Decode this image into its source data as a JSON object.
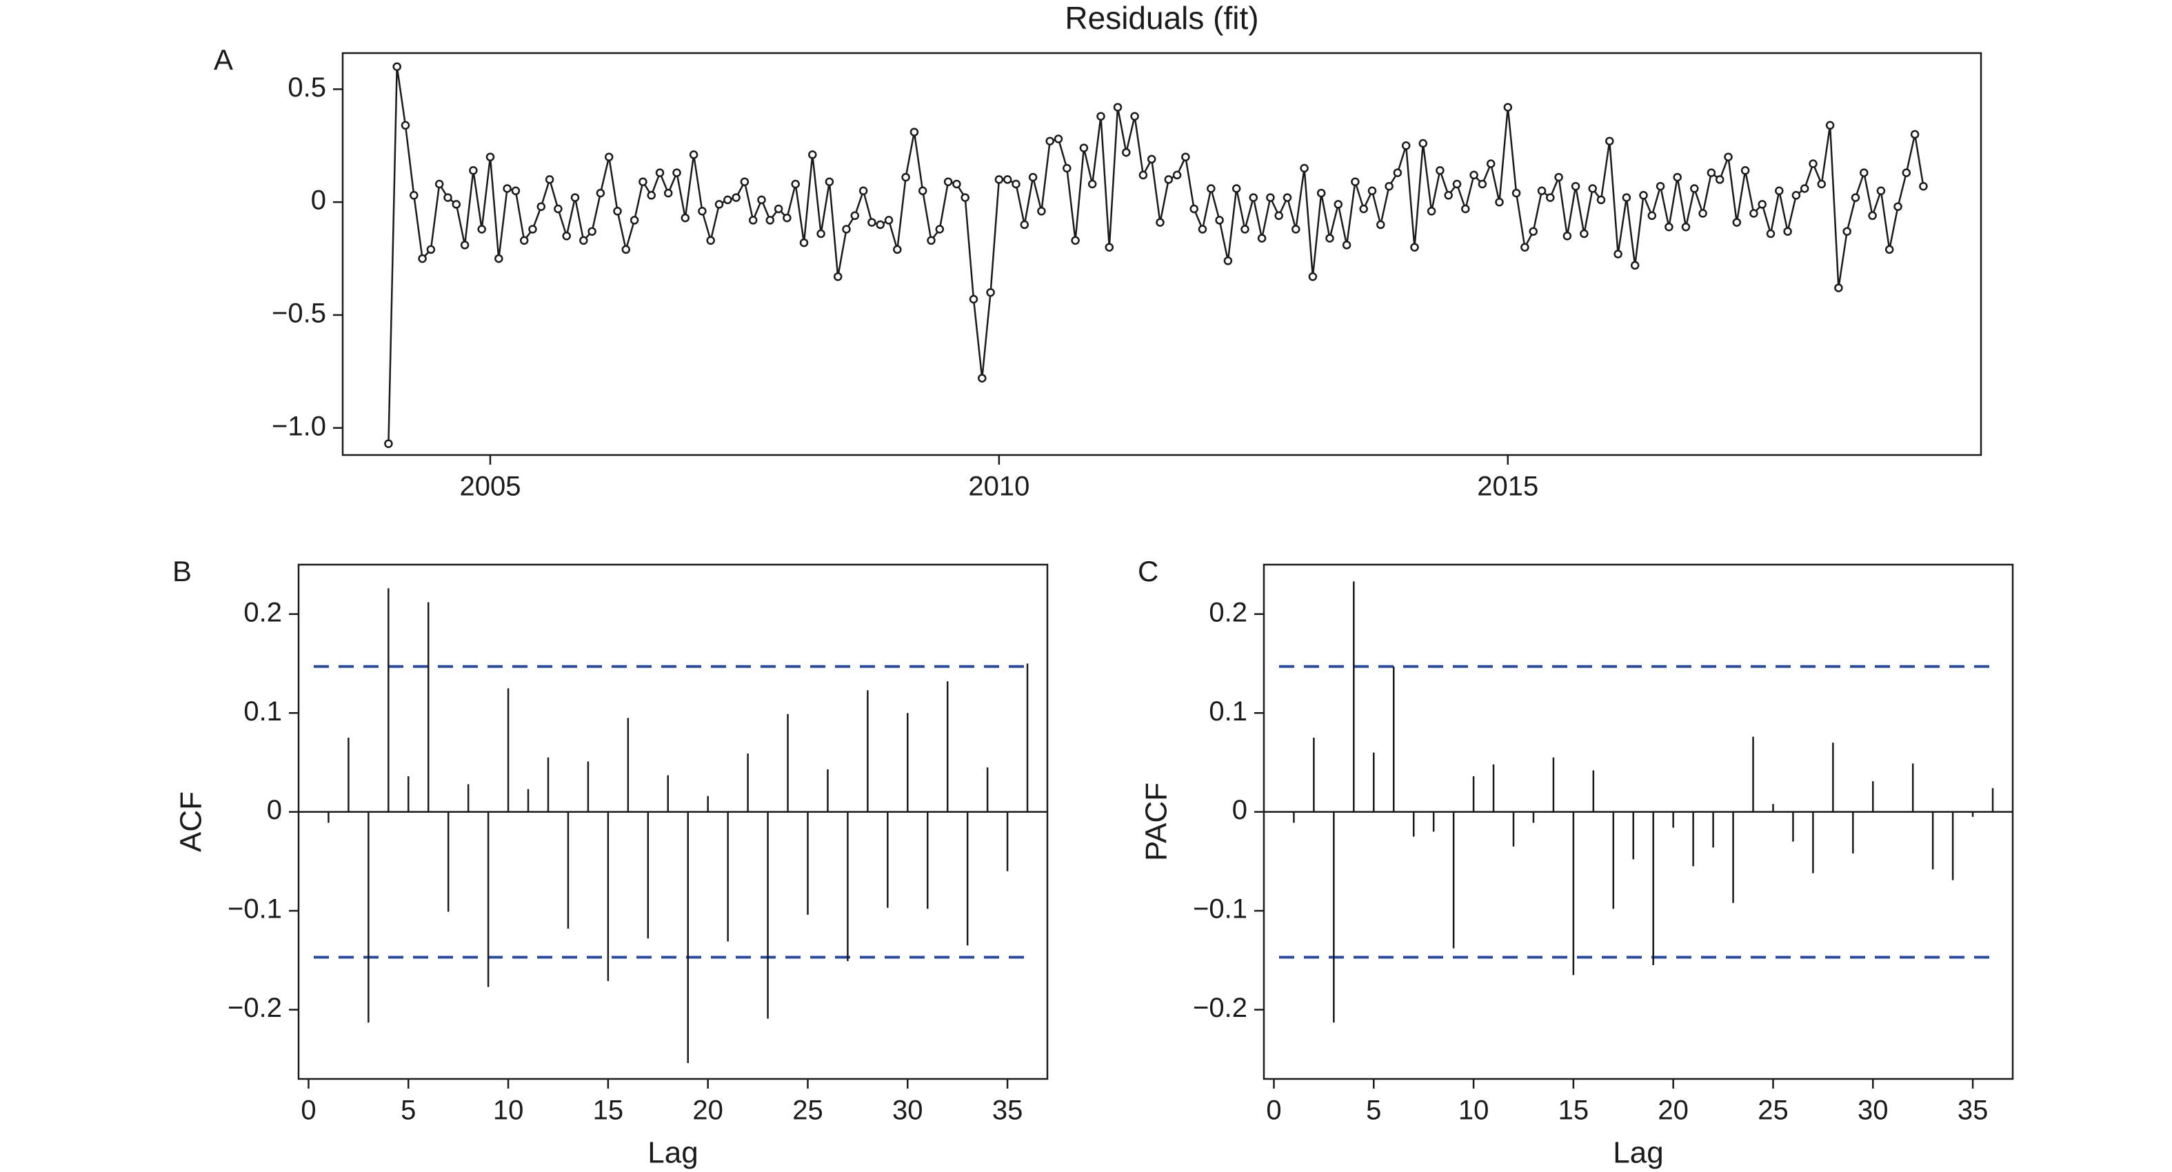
{
  "colors": {
    "line": "#1a1a1a",
    "conf": "#2b4a9b",
    "background": "#ffffff"
  },
  "chart_data": [
    {
      "panel": "A",
      "type": "line",
      "title": "Residuals (fit)",
      "xlabel": "",
      "ylabel": "",
      "xlim": [
        2003.55,
        2019.65
      ],
      "ylim": [
        -1.12,
        0.66
      ],
      "xticks": [
        2005,
        2010,
        2015
      ],
      "yticks": [
        0.5,
        0,
        -0.5,
        -1.0
      ],
      "ytick_labels": [
        "0.5",
        "0",
        "−0.5",
        "−1.0"
      ],
      "x_start": 2004.0,
      "x_step": 0.0833333,
      "values": [
        -1.07,
        0.6,
        0.34,
        0.03,
        -0.25,
        -0.21,
        0.08,
        0.02,
        -0.01,
        -0.19,
        0.14,
        -0.12,
        0.2,
        -0.25,
        0.06,
        0.05,
        -0.17,
        -0.12,
        -0.02,
        0.1,
        -0.03,
        -0.15,
        0.02,
        -0.17,
        -0.13,
        0.04,
        0.2,
        -0.04,
        -0.21,
        -0.08,
        0.09,
        0.03,
        0.13,
        0.04,
        0.13,
        -0.07,
        0.21,
        -0.04,
        -0.17,
        -0.01,
        0.01,
        0.02,
        0.09,
        -0.08,
        0.01,
        -0.08,
        -0.03,
        -0.07,
        0.08,
        -0.18,
        0.21,
        -0.14,
        0.09,
        -0.33,
        -0.12,
        -0.06,
        0.05,
        -0.09,
        -0.1,
        -0.08,
        -0.21,
        0.11,
        0.31,
        0.05,
        -0.17,
        -0.12,
        0.09,
        0.08,
        0.02,
        -0.43,
        -0.78,
        -0.4,
        0.1,
        0.1,
        0.08,
        -0.1,
        0.11,
        -0.04,
        0.27,
        0.28,
        0.15,
        -0.17,
        0.24,
        0.08,
        0.38,
        -0.2,
        0.42,
        0.22,
        0.38,
        0.12,
        0.19,
        -0.09,
        0.1,
        0.12,
        0.2,
        -0.03,
        -0.12,
        0.06,
        -0.08,
        -0.26,
        0.06,
        -0.12,
        0.02,
        -0.16,
        0.02,
        -0.06,
        0.02,
        -0.12,
        0.15,
        -0.33,
        0.04,
        -0.16,
        -0.01,
        -0.19,
        0.09,
        -0.03,
        0.05,
        -0.1,
        0.07,
        0.13,
        0.25,
        -0.2,
        0.26,
        -0.04,
        0.14,
        0.03,
        0.08,
        -0.03,
        0.12,
        0.08,
        0.17,
        0.0,
        0.42,
        0.04,
        -0.2,
        -0.13,
        0.05,
        0.02,
        0.11,
        -0.15,
        0.07,
        -0.14,
        0.06,
        0.01,
        0.27,
        -0.23,
        0.02,
        -0.28,
        0.03,
        -0.06,
        0.07,
        -0.11,
        0.11,
        -0.11,
        0.06,
        -0.05,
        0.13,
        0.1,
        0.2,
        -0.09,
        0.14,
        -0.05,
        -0.01,
        -0.14,
        0.05,
        -0.13,
        0.03,
        0.06,
        0.17,
        0.08,
        0.34,
        -0.38,
        -0.13,
        0.02,
        0.13,
        -0.06,
        0.05,
        -0.21,
        -0.02,
        0.13,
        0.3,
        0.07
      ]
    },
    {
      "panel": "B",
      "type": "bar",
      "title": "",
      "xlabel": "Lag",
      "ylabel": "ACF",
      "xlim": [
        -0.5,
        37
      ],
      "ylim": [
        -0.27,
        0.25
      ],
      "xticks": [
        0,
        5,
        10,
        15,
        20,
        25,
        30,
        35
      ],
      "yticks": [
        0.2,
        0.1,
        0,
        -0.1,
        -0.2
      ],
      "ytick_labels": [
        "0.2",
        "0.1",
        "0",
        "−0.1",
        "−0.2"
      ],
      "conf_limit": 0.147,
      "lags": [
        1,
        2,
        3,
        4,
        5,
        6,
        7,
        8,
        9,
        10,
        11,
        12,
        13,
        14,
        15,
        16,
        17,
        18,
        19,
        20,
        21,
        22,
        23,
        24,
        25,
        26,
        27,
        28,
        29,
        30,
        31,
        32,
        33,
        34,
        35,
        36
      ],
      "values": [
        -0.011,
        0.075,
        -0.213,
        0.226,
        0.036,
        0.212,
        -0.101,
        0.028,
        -0.177,
        0.125,
        0.023,
        0.055,
        -0.118,
        0.051,
        -0.171,
        0.095,
        -0.128,
        0.037,
        -0.254,
        0.016,
        -0.131,
        0.059,
        -0.209,
        0.099,
        -0.104,
        0.043,
        -0.151,
        0.123,
        -0.097,
        0.1,
        -0.098,
        0.132,
        -0.135,
        0.045,
        -0.06,
        0.15
      ]
    },
    {
      "panel": "C",
      "type": "bar",
      "title": "",
      "xlabel": "Lag",
      "ylabel": "PACF",
      "xlim": [
        -0.5,
        37
      ],
      "ylim": [
        -0.27,
        0.25
      ],
      "xticks": [
        0,
        5,
        10,
        15,
        20,
        25,
        30,
        35
      ],
      "yticks": [
        0.2,
        0.1,
        0,
        -0.1,
        -0.2
      ],
      "ytick_labels": [
        "0.2",
        "0.1",
        "0",
        "−0.1",
        "−0.2"
      ],
      "conf_limit": 0.147,
      "lags": [
        1,
        2,
        3,
        4,
        5,
        6,
        7,
        8,
        9,
        10,
        11,
        12,
        13,
        14,
        15,
        16,
        17,
        18,
        19,
        20,
        21,
        22,
        23,
        24,
        25,
        26,
        27,
        28,
        29,
        30,
        31,
        32,
        33,
        34,
        35,
        36
      ],
      "values": [
        -0.011,
        0.075,
        -0.213,
        0.233,
        0.06,
        0.147,
        -0.025,
        -0.02,
        -0.138,
        0.036,
        0.048,
        -0.035,
        -0.011,
        0.055,
        -0.165,
        0.042,
        -0.098,
        -0.048,
        -0.155,
        -0.016,
        -0.055,
        -0.036,
        -0.092,
        0.076,
        0.008,
        -0.03,
        -0.062,
        0.07,
        -0.042,
        0.031,
        0.0,
        0.049,
        -0.058,
        -0.069,
        -0.005,
        0.024
      ]
    }
  ]
}
